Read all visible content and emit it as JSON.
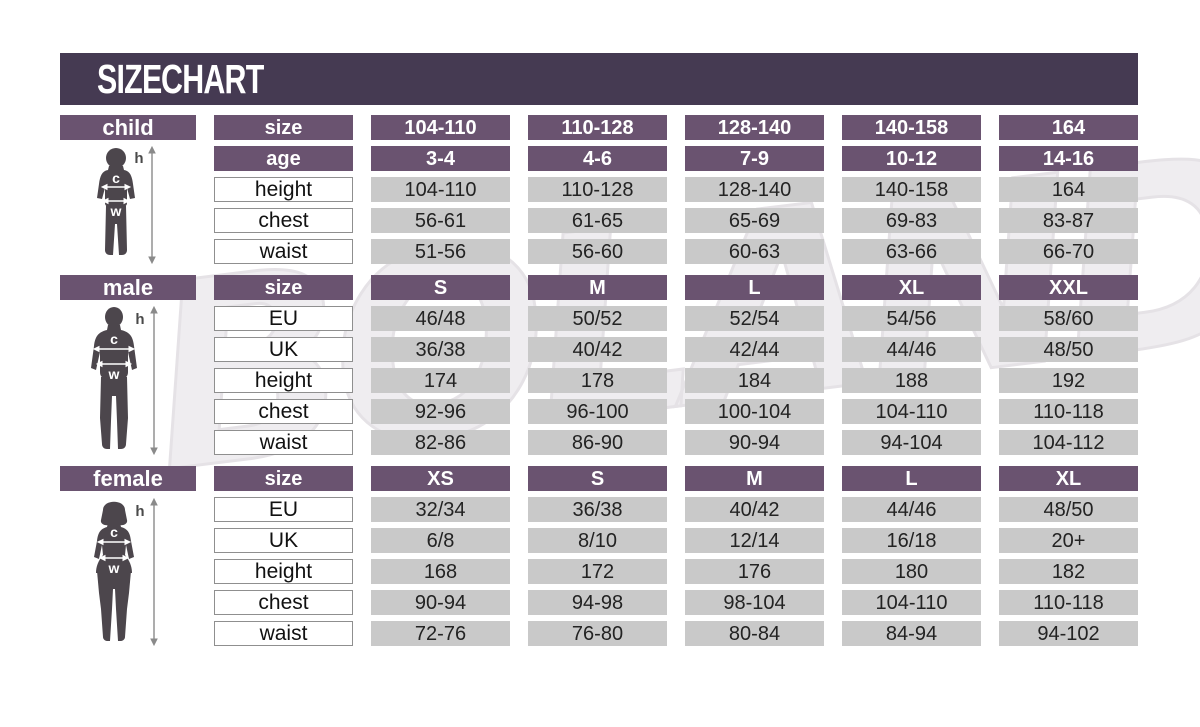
{
  "title": "SIZE CHART",
  "watermark": "BOLAND",
  "figure_markers": {
    "height": "h",
    "chest": "c",
    "waist": "w"
  },
  "colors": {
    "header_bg": "#453a52",
    "purple_cell": "#6a5370",
    "gray_cell": "#c9c9c9",
    "silhouette": "#4c464c"
  },
  "sections": [
    {
      "label": "child",
      "rows": [
        {
          "label": "size",
          "type": "header",
          "values": [
            "104-110",
            "110-128",
            "128-140",
            "140-158",
            "164"
          ]
        },
        {
          "label": "age",
          "type": "header",
          "values": [
            "3-4",
            "4-6",
            "7-9",
            "10-12",
            "14-16"
          ]
        },
        {
          "label": "height",
          "type": "data",
          "values": [
            "104-110",
            "110-128",
            "128-140",
            "140-158",
            "164"
          ]
        },
        {
          "label": "chest",
          "type": "data",
          "values": [
            "56-61",
            "61-65",
            "65-69",
            "69-83",
            "83-87"
          ]
        },
        {
          "label": "waist",
          "type": "data",
          "values": [
            "51-56",
            "56-60",
            "60-63",
            "63-66",
            "66-70"
          ]
        }
      ]
    },
    {
      "label": "male",
      "rows": [
        {
          "label": "size",
          "type": "header",
          "values": [
            "S",
            "M",
            "L",
            "XL",
            "XXL"
          ]
        },
        {
          "label": "EU",
          "type": "data",
          "values": [
            "46/48",
            "50/52",
            "52/54",
            "54/56",
            "58/60"
          ]
        },
        {
          "label": "UK",
          "type": "data",
          "values": [
            "36/38",
            "40/42",
            "42/44",
            "44/46",
            "48/50"
          ]
        },
        {
          "label": "height",
          "type": "data",
          "values": [
            "174",
            "178",
            "184",
            "188",
            "192"
          ]
        },
        {
          "label": "chest",
          "type": "data",
          "values": [
            "92-96",
            "96-100",
            "100-104",
            "104-110",
            "110-118"
          ]
        },
        {
          "label": "waist",
          "type": "data",
          "values": [
            "82-86",
            "86-90",
            "90-94",
            "94-104",
            "104-112"
          ]
        }
      ]
    },
    {
      "label": "female",
      "rows": [
        {
          "label": "size",
          "type": "header",
          "values": [
            "XS",
            "S",
            "M",
            "L",
            "XL"
          ]
        },
        {
          "label": "EU",
          "type": "data",
          "values": [
            "32/34",
            "36/38",
            "40/42",
            "44/46",
            "48/50"
          ]
        },
        {
          "label": "UK",
          "type": "data",
          "values": [
            "6/8",
            "8/10",
            "12/14",
            "16/18",
            "20+"
          ]
        },
        {
          "label": "height",
          "type": "data",
          "values": [
            "168",
            "172",
            "176",
            "180",
            "182"
          ]
        },
        {
          "label": "chest",
          "type": "data",
          "values": [
            "90-94",
            "94-98",
            "98-104",
            "104-110",
            "110-118"
          ]
        },
        {
          "label": "waist",
          "type": "data",
          "values": [
            "72-76",
            "76-80",
            "80-84",
            "84-94",
            "94-102"
          ]
        }
      ]
    }
  ],
  "chart_data": [
    {
      "type": "table",
      "title": "child",
      "columns": [
        "104-110",
        "110-128",
        "128-140",
        "140-158",
        "164"
      ],
      "rows": [
        {
          "label": "age",
          "values": [
            "3-4",
            "4-6",
            "7-9",
            "10-12",
            "14-16"
          ]
        },
        {
          "label": "height",
          "values": [
            "104-110",
            "110-128",
            "128-140",
            "140-158",
            "164"
          ]
        },
        {
          "label": "chest",
          "values": [
            "56-61",
            "61-65",
            "65-69",
            "69-83",
            "83-87"
          ]
        },
        {
          "label": "waist",
          "values": [
            "51-56",
            "56-60",
            "60-63",
            "63-66",
            "66-70"
          ]
        }
      ]
    },
    {
      "type": "table",
      "title": "male",
      "columns": [
        "S",
        "M",
        "L",
        "XL",
        "XXL"
      ],
      "rows": [
        {
          "label": "EU",
          "values": [
            "46/48",
            "50/52",
            "52/54",
            "54/56",
            "58/60"
          ]
        },
        {
          "label": "UK",
          "values": [
            "36/38",
            "40/42",
            "42/44",
            "44/46",
            "48/50"
          ]
        },
        {
          "label": "height",
          "values": [
            "174",
            "178",
            "184",
            "188",
            "192"
          ]
        },
        {
          "label": "chest",
          "values": [
            "92-96",
            "96-100",
            "100-104",
            "104-110",
            "110-118"
          ]
        },
        {
          "label": "waist",
          "values": [
            "82-86",
            "86-90",
            "90-94",
            "94-104",
            "104-112"
          ]
        }
      ]
    },
    {
      "type": "table",
      "title": "female",
      "columns": [
        "XS",
        "S",
        "M",
        "L",
        "XL"
      ],
      "rows": [
        {
          "label": "EU",
          "values": [
            "32/34",
            "36/38",
            "40/42",
            "44/46",
            "48/50"
          ]
        },
        {
          "label": "UK",
          "values": [
            "6/8",
            "8/10",
            "12/14",
            "16/18",
            "20+"
          ]
        },
        {
          "label": "height",
          "values": [
            "168",
            "172",
            "176",
            "180",
            "182"
          ]
        },
        {
          "label": "chest",
          "values": [
            "90-94",
            "94-98",
            "98-104",
            "104-110",
            "110-118"
          ]
        },
        {
          "label": "waist",
          "values": [
            "72-76",
            "76-80",
            "80-84",
            "84-94",
            "94-102"
          ]
        }
      ]
    }
  ]
}
